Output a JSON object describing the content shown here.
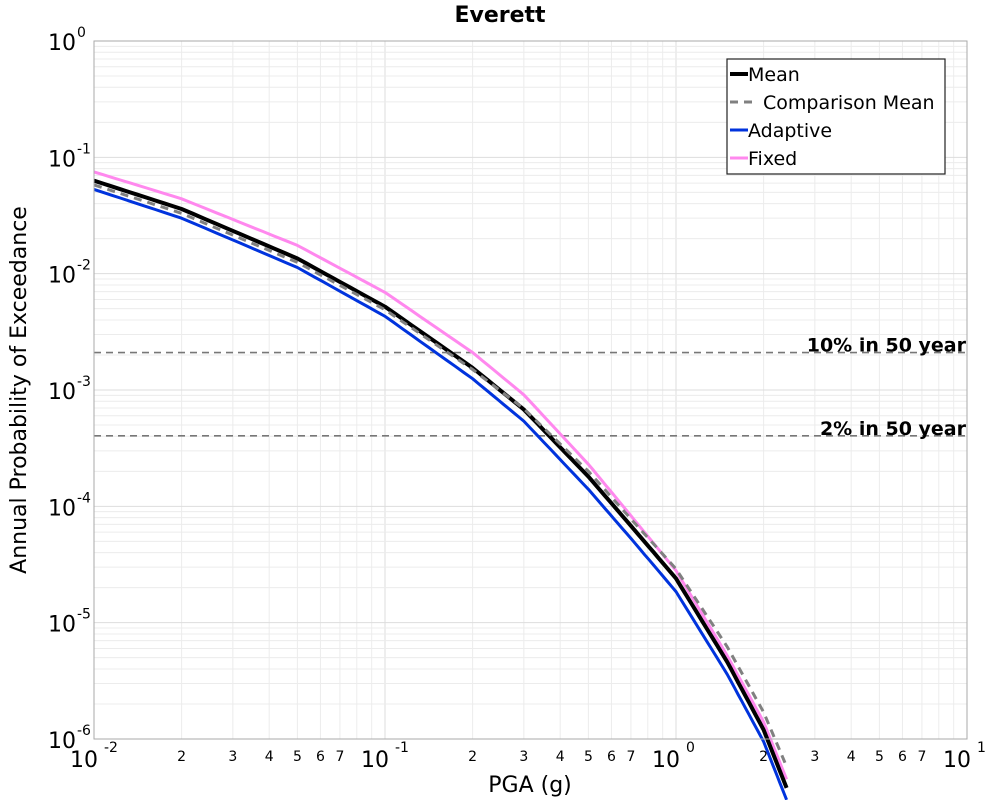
{
  "chart_data": {
    "type": "line",
    "title": "Everett",
    "xlabel": "PGA (g)",
    "ylabel": "Annual Probability of Exceedance",
    "x_scale": "log",
    "y_scale": "log",
    "xlim": [
      0.01,
      10
    ],
    "ylim": [
      1e-06,
      1
    ],
    "grid": true,
    "legend_position": "top-right",
    "x_major_ticks": [
      {
        "base": "10",
        "exp": "-2",
        "value": 0.01
      },
      {
        "base": "10",
        "exp": "-1",
        "value": 0.1
      },
      {
        "base": "10",
        "exp": "0",
        "value": 1
      },
      {
        "base": "10",
        "exp": "1",
        "value": 10
      }
    ],
    "x_minor_tick_labels": [
      "2",
      "3",
      "4",
      "5",
      "6",
      "7"
    ],
    "y_major_ticks": [
      {
        "base": "10",
        "exp": "0",
        "value": 1
      },
      {
        "base": "10",
        "exp": "-1",
        "value": 0.1
      },
      {
        "base": "10",
        "exp": "-2",
        "value": 0.01
      },
      {
        "base": "10",
        "exp": "-3",
        "value": 0.001
      },
      {
        "base": "10",
        "exp": "-4",
        "value": 0.0001
      },
      {
        "base": "10",
        "exp": "-5",
        "value": 1e-05
      },
      {
        "base": "10",
        "exp": "-6",
        "value": 1e-06
      }
    ],
    "x": [
      0.01,
      0.02,
      0.05,
      0.1,
      0.2,
      0.3,
      0.5,
      0.7,
      1.0,
      1.5,
      2.0,
      2.4
    ],
    "series": [
      {
        "name": "Mean",
        "color": "#000000",
        "dash": "solid",
        "values": [
          0.063,
          0.036,
          0.0135,
          0.0052,
          0.00155,
          0.00068,
          0.00018,
          6.8e-05,
          2.4e-05,
          4.6e-06,
          1.2e-06,
          3.8e-07
        ]
      },
      {
        "name": "Comparison Mean",
        "color": "#808080",
        "dash": "dashed",
        "values": [
          0.058,
          0.033,
          0.0125,
          0.0049,
          0.0015,
          0.00069,
          0.0002,
          7.8e-05,
          2.9e-05,
          6.2e-06,
          1.7e-06,
          5.8e-07
        ]
      },
      {
        "name": "Adaptive",
        "color": "#0033dd",
        "dash": "solid",
        "values": [
          0.053,
          0.03,
          0.0113,
          0.0043,
          0.00125,
          0.00054,
          0.00014,
          5.3e-05,
          1.85e-05,
          3.6e-06,
          9.5e-07,
          3e-07
        ]
      },
      {
        "name": "Fixed",
        "color": "#ff88ee",
        "dash": "solid",
        "values": [
          0.075,
          0.044,
          0.0175,
          0.0069,
          0.0021,
          0.00091,
          0.00023,
          8.3e-05,
          2.8e-05,
          5.2e-06,
          1.4e-06,
          4.5e-07
        ]
      }
    ],
    "reference_lines": [
      {
        "label": "10% in 50 year",
        "value": 0.0021,
        "color": "#777777"
      },
      {
        "label": "2% in 50 year",
        "value": 0.000404,
        "color": "#777777"
      }
    ]
  }
}
